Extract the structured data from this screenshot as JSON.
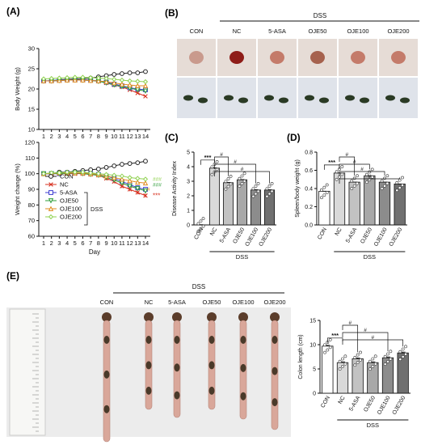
{
  "panels": {
    "A": "(A)",
    "B": "(B)",
    "C": "(C)",
    "D": "(D)",
    "E": "(E)"
  },
  "dss_label": "DSS",
  "groups": [
    "CON",
    "NC",
    "5-ASA",
    "OJE50",
    "OJE100",
    "OJE200"
  ],
  "colors": {
    "CON": "#222222",
    "NC": "#d7301f",
    "5-ASA": "#3a3ad0",
    "OJE50": "#2e9d3a",
    "OJE100": "#e08a1e",
    "OJE200": "#8fd14f"
  },
  "chart_data": [
    {
      "id": "A-top",
      "type": "line",
      "ylabel": "Body Weight (g)",
      "xlabel": "",
      "ylim": [
        10,
        30
      ],
      "yticks": [
        10,
        15,
        20,
        25,
        30
      ],
      "x": [
        1,
        2,
        3,
        4,
        5,
        6,
        7,
        8,
        9,
        10,
        11,
        12,
        13,
        14
      ],
      "series": [
        {
          "name": "CON",
          "values": [
            22,
            22,
            22.3,
            22.4,
            22.5,
            22.6,
            22.7,
            23,
            23.3,
            23.6,
            23.8,
            24,
            24,
            24.3
          ]
        },
        {
          "name": "NC",
          "values": [
            22,
            22,
            22.1,
            22.2,
            22.3,
            22.3,
            22.2,
            22,
            21.5,
            21,
            20.5,
            19.8,
            19,
            18.2
          ]
        },
        {
          "name": "5-ASA",
          "values": [
            22,
            22.1,
            22.2,
            22.3,
            22.3,
            22.3,
            22.2,
            22,
            21.7,
            21.2,
            20.8,
            20.3,
            20,
            19.8
          ]
        },
        {
          "name": "OJE50",
          "values": [
            22,
            22,
            22.1,
            22.2,
            22.3,
            22.2,
            22.1,
            21.9,
            21.5,
            21,
            20.6,
            20.2,
            19.8,
            19.5
          ]
        },
        {
          "name": "OJE100",
          "values": [
            22,
            22,
            22.1,
            22.2,
            22.2,
            22.2,
            22.1,
            22,
            21.8,
            21.5,
            21.2,
            21,
            20.8,
            20.8
          ]
        },
        {
          "name": "OJE200",
          "values": [
            22.5,
            22.6,
            22.7,
            22.8,
            22.9,
            22.9,
            22.8,
            22.7,
            22.6,
            22.4,
            22.2,
            22,
            21.9,
            21.8
          ]
        }
      ]
    },
    {
      "id": "A-bottom",
      "type": "line",
      "ylabel": "Weight change (%)",
      "xlabel": "Day",
      "ylim": [
        60,
        120
      ],
      "yticks": [
        60,
        70,
        80,
        90,
        100,
        110,
        120
      ],
      "x": [
        1,
        2,
        3,
        4,
        5,
        6,
        7,
        8,
        9,
        10,
        11,
        12,
        13,
        14
      ],
      "series": [
        {
          "name": "CON",
          "values": [
            100,
            100,
            101,
            101,
            101.5,
            102,
            102.5,
            103,
            104,
            105,
            106,
            106.5,
            107,
            108
          ]
        },
        {
          "name": "NC",
          "values": [
            100,
            100,
            100,
            100,
            100,
            100,
            99.5,
            99,
            97,
            95,
            92,
            90,
            88,
            86
          ]
        },
        {
          "name": "5-ASA",
          "values": [
            100,
            100,
            100,
            100.5,
            100.5,
            100.5,
            100,
            99.5,
            98.5,
            97,
            95,
            93,
            91,
            90
          ]
        },
        {
          "name": "OJE50",
          "values": [
            100,
            100,
            100,
            100,
            100.5,
            100,
            99.5,
            99,
            97.5,
            96,
            94,
            92,
            90.5,
            89
          ]
        },
        {
          "name": "OJE100",
          "values": [
            100,
            100,
            100.5,
            100.5,
            100.5,
            100.5,
            100,
            99.5,
            98.5,
            97.5,
            96.5,
            95.5,
            94.5,
            94
          ]
        },
        {
          "name": "OJE200",
          "values": [
            100,
            100.5,
            100.5,
            101,
            101,
            101,
            100.5,
            100,
            99.5,
            99,
            98.5,
            97.5,
            97,
            96.5
          ]
        }
      ],
      "annotations": {
        "nc_sig": "***",
        "green_sig": "###",
        "orange_sig": "#"
      }
    },
    {
      "id": "C",
      "type": "bar",
      "ylabel": "Disease Activity Index",
      "ylim": [
        0,
        5
      ],
      "yticks": [
        0,
        1,
        2,
        3,
        4,
        5
      ],
      "categories": [
        "CON",
        "NC",
        "5-ASA",
        "OJE50",
        "OJE100",
        "OJE200"
      ],
      "values": [
        0,
        3.9,
        2.9,
        3.1,
        2.4,
        2.4
      ],
      "sig": [
        "***",
        "#",
        "#",
        "#"
      ]
    },
    {
      "id": "D",
      "type": "bar",
      "ylabel": "Spleen/body weight (g)",
      "ylim": [
        0.0,
        0.8
      ],
      "yticks": [
        "0.0",
        "0.2",
        "0.4",
        "0.6",
        "0.8"
      ],
      "categories": [
        "CON",
        "NC",
        "5-ASA",
        "OJE50",
        "OJE100",
        "OJE200"
      ],
      "values": [
        0.37,
        0.57,
        0.47,
        0.54,
        0.47,
        0.45
      ],
      "sig": [
        "***",
        "#",
        "#",
        "#",
        "#"
      ]
    },
    {
      "id": "E",
      "type": "bar",
      "ylabel": "Colon length (cm)",
      "ylim": [
        0,
        15
      ],
      "yticks": [
        0,
        5,
        10,
        15
      ],
      "categories": [
        "CON",
        "NC",
        "5-ASA",
        "OJE50",
        "OJE100",
        "OJE200"
      ],
      "values": [
        9.7,
        6.3,
        7.1,
        6.3,
        7.3,
        8.3
      ],
      "sig": [
        "***",
        "#",
        "#",
        "#"
      ]
    }
  ]
}
